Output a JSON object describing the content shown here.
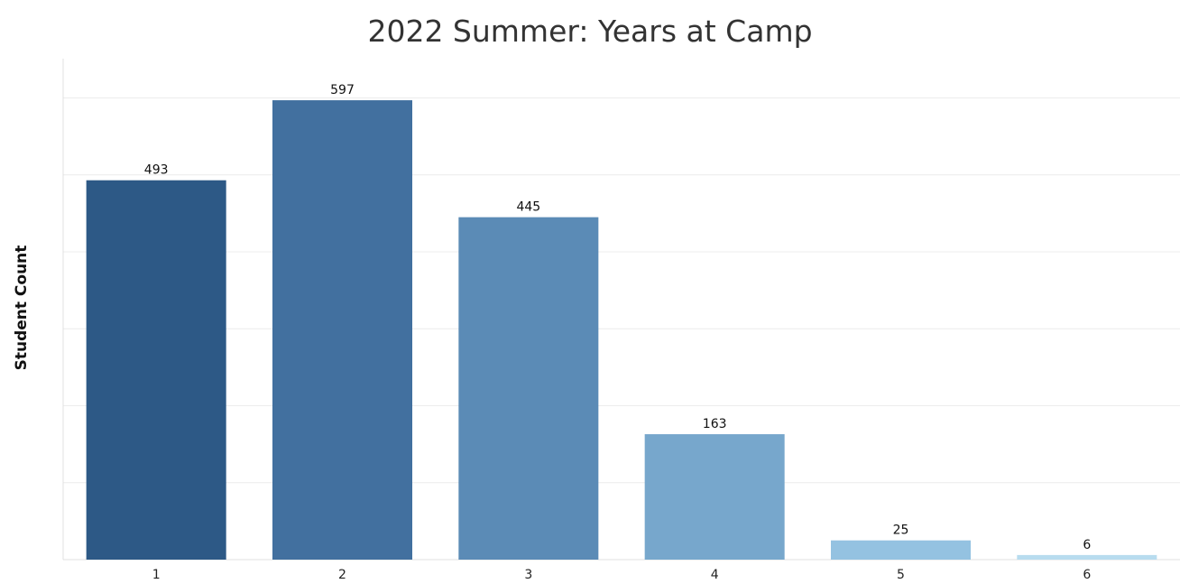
{
  "chart_data": {
    "type": "bar",
    "title": "2022 Summer: Years at Camp",
    "ylabel": "Student Count",
    "categories": [
      "1",
      "2",
      "3",
      "4",
      "5",
      "6"
    ],
    "values": [
      493,
      597,
      445,
      163,
      25,
      6
    ],
    "ylim": [
      0,
      650
    ],
    "grid": true,
    "gridlines": [
      0,
      100,
      200,
      300,
      400,
      500,
      600
    ],
    "data_labels": true,
    "colors": [
      "#2d5986",
      "#42709f",
      "#5b8bb6",
      "#77a7cc",
      "#94c2e1",
      "#b8dcef"
    ]
  }
}
